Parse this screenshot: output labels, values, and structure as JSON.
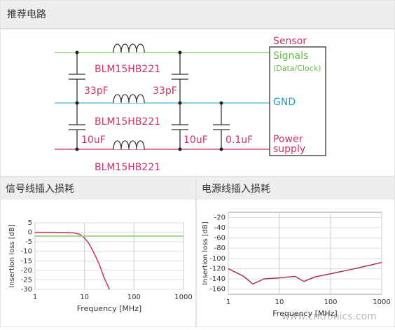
{
  "header": {
    "title": "推荐电路"
  },
  "diagram": {
    "block": {
      "title": "Sensor",
      "signals": "Signals",
      "signals_note": "(Data/Clock)",
      "gnd": "GND",
      "power": "Power",
      "supply": "supply"
    },
    "inductors": [
      "BLM15HB221",
      "BLM15HB221",
      "BLM15HB221"
    ],
    "capacitors": [
      "33pF",
      "33pF",
      "10uF",
      "10uF",
      "0.1uF"
    ]
  },
  "chart_data": [
    {
      "type": "line",
      "title": "信号线插入损耗",
      "xlabel": "Frequency [MHz]",
      "ylabel": "Insertion loss [dB]",
      "log_x": true,
      "grid": true,
      "xlim": [
        1,
        1000
      ],
      "xticks": [
        1,
        10,
        100,
        1000
      ],
      "ylim": [
        -30,
        5
      ],
      "yticks": [
        5,
        0,
        -5,
        -10,
        -15,
        -20,
        -25,
        -30
      ],
      "series": [
        {
          "color": "#cc3366",
          "x": [
            1,
            2,
            4,
            6,
            8,
            10,
            12,
            15,
            20,
            25,
            32
          ],
          "values": [
            0,
            0,
            -0.1,
            -0.3,
            -1,
            -3,
            -5.5,
            -10,
            -17,
            -24,
            -30
          ]
        },
        {
          "color": "#88cc66",
          "x": [
            1,
            1000
          ],
          "values": [
            -2,
            -2
          ]
        }
      ]
    },
    {
      "type": "line",
      "title": "电源线插入损耗",
      "xlabel": "Frequency [MHz]",
      "ylabel": "Insertion loss [dB]",
      "log_x": true,
      "grid": true,
      "xlim": [
        1,
        1000
      ],
      "xticks": [
        1,
        10,
        100,
        1000
      ],
      "ylim": [
        -170,
        -10
      ],
      "yticks": [
        -20,
        -40,
        -60,
        -80,
        -100,
        -120,
        -140,
        -160
      ],
      "series": [
        {
          "color": "#aa3355",
          "x": [
            1,
            2,
            3,
            5,
            10,
            20,
            30,
            50,
            100,
            300,
            1000
          ],
          "values": [
            -120,
            -135,
            -150,
            -140,
            -138,
            -135,
            -145,
            -136,
            -130,
            -120,
            -108
          ]
        }
      ]
    }
  ],
  "watermark": "www.cntronics.com"
}
